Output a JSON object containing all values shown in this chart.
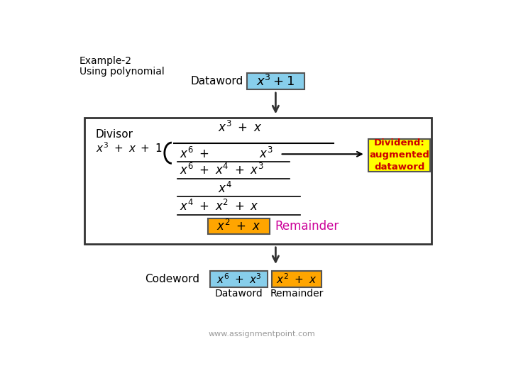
{
  "title_line1": "Example-2",
  "title_line2": "Using polynomial",
  "dataword_label": "Dataword",
  "dataword_box_color": "#87CEEB",
  "divisor_label": "Divisor",
  "divisor_expr": "x³ + x + 1",
  "remainder_box_color": "#FFA500",
  "remainder_label": "Remainder",
  "remainder_label_color": "#CC0099",
  "dividend_box_text": "Dividend:\naugmented\ndataword",
  "dividend_box_color": "#FFFF00",
  "dividend_box_text_color": "#CC0000",
  "codeword_label": "Codeword",
  "codeword_box1_color": "#87CEEB",
  "codeword_box2_color": "#FFA500",
  "codeword_sub1": "Dataword",
  "codeword_sub2": "Remainder",
  "footer": "www.assignmentpoint.com",
  "bg_color": "#ffffff",
  "box_border_color": "#555555",
  "arrow_color": "#333333",
  "big_rect_color": "#333333"
}
